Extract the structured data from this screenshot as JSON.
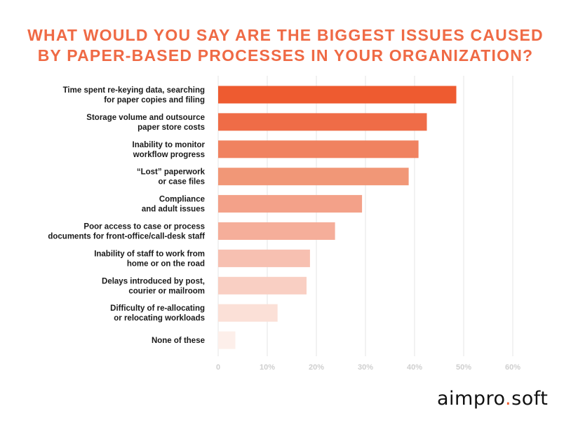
{
  "chart_data": {
    "type": "bar",
    "orientation": "horizontal",
    "title_lines": [
      "WHAT WOULD YOU SAY ARE THE BIGGEST ISSUES CAUSED",
      "BY PAPER-BASED PROCESSES IN YOUR ORGANIZATION?"
    ],
    "categories": [
      [
        "Time spent re-keying data, searching",
        "for paper copies and filing"
      ],
      [
        "Storage volume and outsource",
        "paper store costs"
      ],
      [
        "Inability to monitor",
        "workflow progress"
      ],
      [
        "“Lost” paperwork",
        "or case files"
      ],
      [
        "Compliance",
        "and adult issues"
      ],
      [
        "Poor access to case or process",
        "documents for front-office/call-desk staff"
      ],
      [
        "Inability of staff to work from",
        "home or on the road"
      ],
      [
        "Delays introduced by post,",
        "courier or mailroom"
      ],
      [
        "Difficulty of re-allocating",
        "or relocating workloads"
      ],
      [
        "None of these"
      ]
    ],
    "values": [
      48.5,
      42.5,
      40.8,
      38.8,
      29.3,
      23.8,
      18.7,
      18.0,
      12.1,
      3.5
    ],
    "bar_colors": [
      "#ee5b30",
      "#ef6c47",
      "#f08260",
      "#f19777",
      "#f3a189",
      "#f5ae9a",
      "#f7c0b1",
      "#f9cfc3",
      "#fbe0d7",
      "#fdefea"
    ],
    "xlim": [
      0,
      60
    ],
    "xticks": [
      0,
      10,
      20,
      30,
      40,
      50,
      60
    ],
    "xtick_labels": [
      "0",
      "10%",
      "20%",
      "30%",
      "40%",
      "50%",
      "60%"
    ],
    "grid": true,
    "legend": "none",
    "xlabel": "",
    "ylabel": ""
  },
  "logo": {
    "part1": "aimpro",
    "dot": ".",
    "part2": "soft"
  }
}
